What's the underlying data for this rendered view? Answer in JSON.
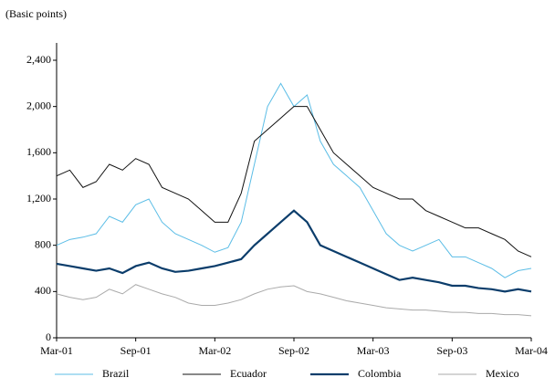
{
  "chart_data": {
    "type": "line",
    "subtitle": "(Basic points)",
    "categories": [
      "Mar-01",
      null,
      null,
      null,
      null,
      null,
      "Sep-01",
      null,
      null,
      null,
      null,
      null,
      "Mar-02",
      null,
      null,
      null,
      null,
      null,
      "Sep-02",
      null,
      null,
      null,
      null,
      null,
      "Mar-03",
      null,
      null,
      null,
      null,
      null,
      "Sep-03",
      null,
      null,
      null,
      null,
      null,
      "Mar-04"
    ],
    "series": [
      {
        "name": "Brazil",
        "color": "#5bbde6",
        "values": [
          800,
          850,
          870,
          900,
          1050,
          1000,
          1150,
          1200,
          1000,
          900,
          850,
          800,
          740,
          780,
          1000,
          1500,
          2000,
          2200,
          2000,
          2100,
          1700,
          1500,
          1400,
          1300,
          1100,
          900,
          800,
          750,
          800,
          850,
          700,
          700,
          650,
          600,
          520,
          580,
          600
        ]
      },
      {
        "name": "Ecuador",
        "color": "#111111",
        "values": [
          1400,
          1450,
          1300,
          1350,
          1500,
          1450,
          1550,
          1500,
          1300,
          1250,
          1200,
          1100,
          1000,
          1000,
          1250,
          1700,
          1800,
          1900,
          2000,
          2000,
          1800,
          1600,
          1500,
          1400,
          1300,
          1250,
          1200,
          1200,
          1100,
          1050,
          1000,
          950,
          950,
          900,
          850,
          750,
          700
        ]
      },
      {
        "name": "Colombia",
        "color": "#0b3d6b",
        "values": [
          640,
          620,
          600,
          580,
          600,
          560,
          620,
          650,
          600,
          570,
          580,
          600,
          620,
          650,
          680,
          800,
          900,
          1000,
          1100,
          1000,
          800,
          750,
          700,
          650,
          600,
          550,
          500,
          520,
          500,
          480,
          450,
          450,
          430,
          420,
          400,
          420,
          400
        ]
      },
      {
        "name": "Mexico",
        "color": "#aaaaaa",
        "values": [
          380,
          350,
          330,
          350,
          420,
          380,
          460,
          420,
          380,
          350,
          300,
          280,
          280,
          300,
          330,
          380,
          420,
          440,
          450,
          400,
          380,
          350,
          320,
          300,
          280,
          260,
          250,
          240,
          240,
          230,
          220,
          220,
          210,
          210,
          200,
          200,
          190
        ]
      }
    ],
    "ylim": [
      0,
      2550
    ],
    "yticks": [
      0,
      400,
      800,
      {
        "value": 1200,
        "label": "1,200"
      },
      {
        "value": 1600,
        "label": "1,600"
      },
      {
        "value": 2000,
        "label": "2,000"
      },
      {
        "value": 2400,
        "label": "2,400"
      }
    ],
    "grid": false,
    "legend": "bottom"
  }
}
